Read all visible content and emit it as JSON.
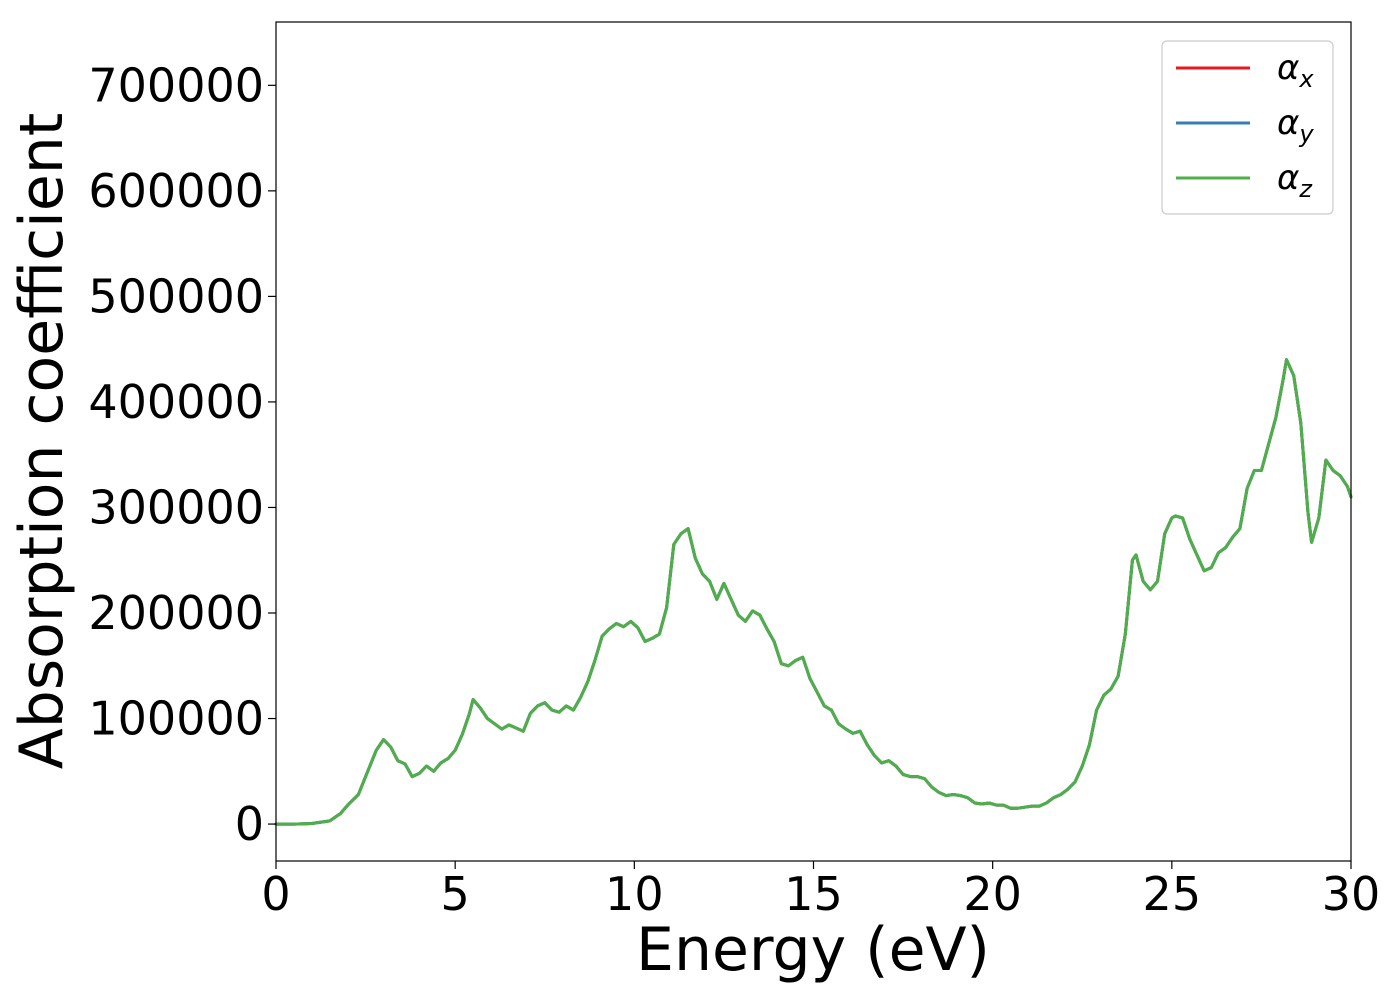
{
  "chart_data": {
    "type": "line",
    "title": "",
    "xlabel": "Energy (eV)",
    "ylabel": "Absorption coefficient",
    "xlim": [
      0,
      30
    ],
    "ylim": [
      -35000,
      760000
    ],
    "xticks": [
      0,
      5,
      10,
      15,
      20,
      25,
      30
    ],
    "xtick_labels": [
      "0",
      "5",
      "10",
      "15",
      "20",
      "25",
      "30"
    ],
    "yticks": [
      0,
      100000,
      200000,
      300000,
      400000,
      500000,
      600000,
      700000
    ],
    "ytick_labels": [
      "0",
      "100000",
      "200000",
      "300000",
      "400000",
      "500000",
      "600000",
      "700000"
    ],
    "grid": false,
    "legend_position": "top-right",
    "x": [
      0,
      0.5,
      1.0,
      1.5,
      1.8,
      2.0,
      2.3,
      2.5,
      2.8,
      3.0,
      3.2,
      3.4,
      3.6,
      3.8,
      4.0,
      4.2,
      4.4,
      4.6,
      4.8,
      5.0,
      5.2,
      5.4,
      5.5,
      5.7,
      5.9,
      6.1,
      6.3,
      6.5,
      6.7,
      6.9,
      7.1,
      7.3,
      7.5,
      7.7,
      7.9,
      8.1,
      8.3,
      8.5,
      8.7,
      8.9,
      9.1,
      9.3,
      9.5,
      9.7,
      9.9,
      10.1,
      10.3,
      10.5,
      10.7,
      10.9,
      11.1,
      11.3,
      11.5,
      11.7,
      11.9,
      12.1,
      12.3,
      12.5,
      12.7,
      12.9,
      13.1,
      13.3,
      13.5,
      13.7,
      13.9,
      14.1,
      14.3,
      14.5,
      14.7,
      14.9,
      15.1,
      15.3,
      15.5,
      15.7,
      15.9,
      16.1,
      16.3,
      16.5,
      16.7,
      16.9,
      17.1,
      17.3,
      17.5,
      17.7,
      17.9,
      18.1,
      18.3,
      18.5,
      18.7,
      18.9,
      19.1,
      19.3,
      19.5,
      19.7,
      19.9,
      20.1,
      20.3,
      20.5,
      20.7,
      20.9,
      21.1,
      21.3,
      21.5,
      21.7,
      21.9,
      22.1,
      22.3,
      22.5,
      22.7,
      22.9,
      23.1,
      23.3,
      23.5,
      23.7,
      23.9,
      24.0,
      24.2,
      24.4,
      24.6,
      24.8,
      25.0,
      25.1,
      25.3,
      25.5,
      25.7,
      25.9,
      26.1,
      26.3,
      26.5,
      26.7,
      26.9,
      27.1,
      27.3,
      27.5,
      27.7,
      27.9,
      28.1,
      28.2,
      28.4,
      28.6,
      28.8,
      28.9,
      29.1,
      29.3,
      29.5,
      29.7,
      29.9,
      30.0
    ],
    "series": [
      {
        "name": "α_x",
        "color": "#e41a1c",
        "values": [
          0,
          0,
          500,
          3000,
          10000,
          18000,
          28000,
          45000,
          70000,
          80000,
          73000,
          60000,
          57000,
          45000,
          48000,
          55000,
          50000,
          58000,
          62000,
          70000,
          85000,
          105000,
          118000,
          110000,
          100000,
          95000,
          90000,
          94000,
          91000,
          88000,
          105000,
          112000,
          115000,
          108000,
          106000,
          112000,
          108000,
          120000,
          135000,
          155000,
          178000,
          185000,
          190000,
          187000,
          192000,
          186000,
          173000,
          176000,
          180000,
          205000,
          265000,
          275000,
          280000,
          252000,
          237000,
          230000,
          213000,
          228000,
          213000,
          198000,
          192000,
          202000,
          198000,
          185000,
          173000,
          152000,
          150000,
          155000,
          158000,
          138000,
          125000,
          112000,
          108000,
          95000,
          90000,
          86000,
          88000,
          75000,
          65000,
          58000,
          60000,
          55000,
          47000,
          45000,
          45000,
          43000,
          35000,
          30000,
          27000,
          28000,
          27000,
          25000,
          20000,
          19000,
          20000,
          18000,
          18000,
          15000,
          15000,
          16000,
          17000,
          17000,
          20000,
          25000,
          28000,
          33000,
          40000,
          55000,
          75000,
          108000,
          122000,
          128000,
          140000,
          180000,
          250000,
          255000,
          230000,
          222000,
          230000,
          275000,
          290000,
          292000,
          290000,
          270000,
          255000,
          240000,
          243000,
          257000,
          262000,
          272000,
          280000,
          318000,
          335000,
          335000,
          360000,
          385000,
          420000,
          440000,
          425000,
          380000,
          295000,
          267000,
          290000,
          345000,
          335000,
          330000,
          320000,
          310000
        ]
      },
      {
        "name": "α_y",
        "color": "#377eb8",
        "values": [
          0,
          0,
          500,
          3000,
          10000,
          18000,
          28000,
          45000,
          70000,
          80000,
          73000,
          60000,
          57000,
          45000,
          48000,
          55000,
          50000,
          58000,
          62000,
          70000,
          85000,
          105000,
          118000,
          110000,
          100000,
          95000,
          90000,
          94000,
          91000,
          88000,
          105000,
          112000,
          115000,
          108000,
          106000,
          112000,
          108000,
          120000,
          135000,
          155000,
          178000,
          185000,
          190000,
          187000,
          192000,
          186000,
          173000,
          176000,
          180000,
          205000,
          265000,
          275000,
          280000,
          252000,
          237000,
          230000,
          213000,
          228000,
          213000,
          198000,
          192000,
          202000,
          198000,
          185000,
          173000,
          152000,
          150000,
          155000,
          158000,
          138000,
          125000,
          112000,
          108000,
          95000,
          90000,
          86000,
          88000,
          75000,
          65000,
          58000,
          60000,
          55000,
          47000,
          45000,
          45000,
          43000,
          35000,
          30000,
          27000,
          28000,
          27000,
          25000,
          20000,
          19000,
          20000,
          18000,
          18000,
          15000,
          15000,
          16000,
          17000,
          17000,
          20000,
          25000,
          28000,
          33000,
          40000,
          55000,
          75000,
          108000,
          122000,
          128000,
          140000,
          180000,
          250000,
          255000,
          230000,
          222000,
          230000,
          275000,
          290000,
          292000,
          290000,
          270000,
          255000,
          240000,
          243000,
          257000,
          262000,
          272000,
          280000,
          318000,
          335000,
          335000,
          360000,
          385000,
          420000,
          440000,
          425000,
          380000,
          295000,
          267000,
          290000,
          345000,
          335000,
          330000,
          320000,
          310000
        ]
      },
      {
        "name": "α_z",
        "color": "#4daf4a",
        "values": [
          0,
          0,
          500,
          3000,
          10000,
          18000,
          28000,
          45000,
          70000,
          80000,
          73000,
          60000,
          57000,
          45000,
          48000,
          55000,
          50000,
          58000,
          62000,
          70000,
          85000,
          105000,
          118000,
          110000,
          100000,
          95000,
          90000,
          94000,
          91000,
          88000,
          105000,
          112000,
          115000,
          108000,
          106000,
          112000,
          108000,
          120000,
          135000,
          155000,
          178000,
          185000,
          190000,
          187000,
          192000,
          186000,
          173000,
          176000,
          180000,
          205000,
          265000,
          275000,
          280000,
          252000,
          237000,
          230000,
          213000,
          228000,
          213000,
          198000,
          192000,
          202000,
          198000,
          185000,
          173000,
          152000,
          150000,
          155000,
          158000,
          138000,
          125000,
          112000,
          108000,
          95000,
          90000,
          86000,
          88000,
          75000,
          65000,
          58000,
          60000,
          55000,
          47000,
          45000,
          45000,
          43000,
          35000,
          30000,
          27000,
          28000,
          27000,
          25000,
          20000,
          19000,
          20000,
          18000,
          18000,
          15000,
          15000,
          16000,
          17000,
          17000,
          20000,
          25000,
          28000,
          33000,
          40000,
          55000,
          75000,
          108000,
          122000,
          128000,
          140000,
          180000,
          250000,
          255000,
          230000,
          222000,
          230000,
          275000,
          290000,
          292000,
          290000,
          270000,
          255000,
          240000,
          243000,
          257000,
          262000,
          272000,
          280000,
          318000,
          335000,
          335000,
          360000,
          385000,
          420000,
          440000,
          425000,
          380000,
          295000,
          267000,
          290000,
          345000,
          335000,
          330000,
          320000,
          310000
        ]
      }
    ],
    "legend": [
      {
        "symbol": "α",
        "subscript": "x",
        "color": "#e41a1c"
      },
      {
        "symbol": "α",
        "subscript": "y",
        "color": "#377eb8"
      },
      {
        "symbol": "α",
        "subscript": "z",
        "color": "#4daf4a"
      }
    ]
  }
}
